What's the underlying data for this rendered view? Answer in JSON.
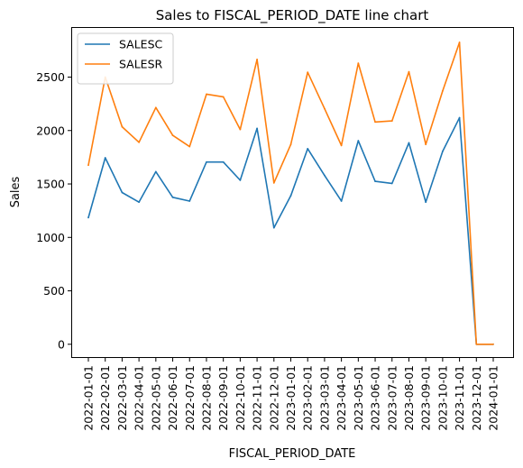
{
  "chart_data": {
    "type": "line",
    "title": "Sales to FISCAL_PERIOD_DATE line chart",
    "xlabel": "FISCAL_PERIOD_DATE",
    "ylabel": "Sales",
    "ylim": [
      -120,
      2960
    ],
    "yticks": [
      0,
      500,
      1000,
      1500,
      2000,
      2500
    ],
    "grid": false,
    "legend_position": "top-left",
    "categories": [
      "2022-01-01",
      "2022-02-01",
      "2022-03-01",
      "2022-04-01",
      "2022-05-01",
      "2022-06-01",
      "2022-07-01",
      "2022-08-01",
      "2022-09-01",
      "2022-10-01",
      "2022-11-01",
      "2022-12-01",
      "2023-01-01",
      "2023-02-01",
      "2023-03-01",
      "2023-04-01",
      "2023-05-01",
      "2023-06-01",
      "2023-07-01",
      "2023-08-01",
      "2023-09-01",
      "2023-10-01",
      "2023-11-01",
      "2023-12-01",
      "2024-01-01"
    ],
    "series": [
      {
        "name": "SALESC",
        "color": "#1f77b4",
        "values": [
          1185,
          1745,
          1420,
          1330,
          1615,
          1375,
          1340,
          1705,
          1705,
          1535,
          2020,
          1090,
          1390,
          1830,
          1580,
          1340,
          1905,
          1525,
          1505,
          1885,
          1330,
          1805,
          2120,
          0,
          0
        ]
      },
      {
        "name": "SALESR",
        "color": "#ff7f0e",
        "values": [
          1675,
          2500,
          2035,
          1890,
          2215,
          1955,
          1850,
          2340,
          2315,
          2010,
          2665,
          1510,
          1870,
          2545,
          2205,
          1860,
          2630,
          2080,
          2090,
          2550,
          1870,
          2370,
          2825,
          0,
          0
        ]
      }
    ]
  }
}
